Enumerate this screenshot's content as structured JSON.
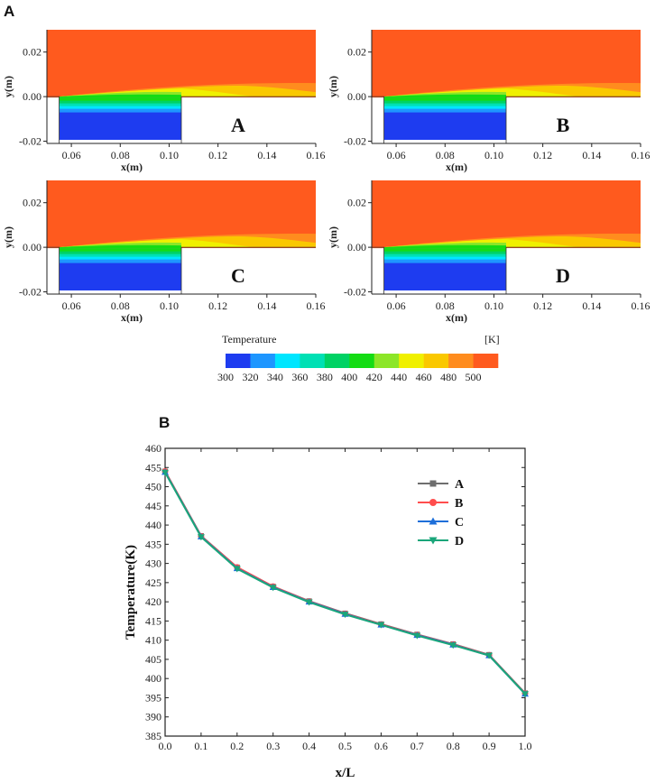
{
  "figure_labels": {
    "top": "A",
    "bottom": "B"
  },
  "chart_data": [
    {
      "type": "heatmap",
      "description_panels": [
        "A",
        "B",
        "C",
        "D"
      ],
      "xlabel": "x(m)",
      "ylabel": "y(m)",
      "xlim": [
        0.05,
        0.16
      ],
      "ylim": [
        -0.021,
        0.03
      ],
      "xticks": [
        "0.06",
        "0.08",
        "0.10",
        "0.12",
        "0.14",
        "0.16"
      ],
      "xtick_values": [
        0.06,
        0.08,
        0.1,
        0.12,
        0.14,
        0.16
      ],
      "yticks": [
        "0.02",
        "0.00",
        "-0.02"
      ],
      "ytick_values": [
        0.02,
        0.0,
        -0.02
      ],
      "colorbar": {
        "title": "Temperature",
        "unit": "[K]",
        "ticks": [
          "300",
          "320",
          "340",
          "360",
          "380",
          "400",
          "420",
          "440",
          "460",
          "480",
          "500"
        ],
        "levels": [
          300,
          320,
          340,
          360,
          380,
          400,
          420,
          440,
          460,
          480,
          500
        ],
        "colors": [
          "#1e3cf0",
          "#1e96ff",
          "#00e6ff",
          "#00e0b4",
          "#00d264",
          "#14dc14",
          "#8ce628",
          "#f0f000",
          "#fac800",
          "#ff8c1e",
          "#ff5a1e"
        ]
      }
    },
    {
      "type": "line",
      "xlabel": "x/L",
      "ylabel": "Temperature(K)",
      "xlim": [
        0.0,
        1.0
      ],
      "ylim": [
        385,
        460
      ],
      "xticks": [
        "0.0",
        "0.1",
        "0.2",
        "0.3",
        "0.4",
        "0.5",
        "0.6",
        "0.7",
        "0.8",
        "0.9",
        "1.0"
      ],
      "yticks": [
        "385",
        "390",
        "395",
        "400",
        "405",
        "410",
        "415",
        "420",
        "425",
        "430",
        "435",
        "440",
        "445",
        "450",
        "455",
        "460"
      ],
      "x": [
        0.0,
        0.1,
        0.2,
        0.3,
        0.4,
        0.5,
        0.6,
        0.7,
        0.8,
        0.9,
        1.0
      ],
      "series": [
        {
          "name": "A",
          "color": "#6e6e6e",
          "marker": "square",
          "values": [
            454.0,
            437.2,
            429.0,
            424.0,
            420.2,
            417.0,
            414.2,
            411.5,
            409.0,
            406.2,
            396.2
          ]
        },
        {
          "name": "B",
          "color": "#ff4d4d",
          "marker": "circle",
          "values": [
            454.0,
            437.1,
            429.0,
            424.0,
            420.1,
            416.9,
            414.1,
            411.4,
            408.9,
            406.1,
            396.1
          ]
        },
        {
          "name": "C",
          "color": "#1e6fd9",
          "marker": "triangle-up",
          "values": [
            453.8,
            437.0,
            428.7,
            423.8,
            420.0,
            416.8,
            414.0,
            411.3,
            408.8,
            406.0,
            396.0
          ]
        },
        {
          "name": "D",
          "color": "#1aa67a",
          "marker": "triangle-down",
          "values": [
            453.7,
            436.9,
            428.6,
            423.7,
            419.9,
            416.7,
            414.0,
            411.2,
            408.7,
            406.0,
            396.0
          ]
        }
      ]
    }
  ]
}
